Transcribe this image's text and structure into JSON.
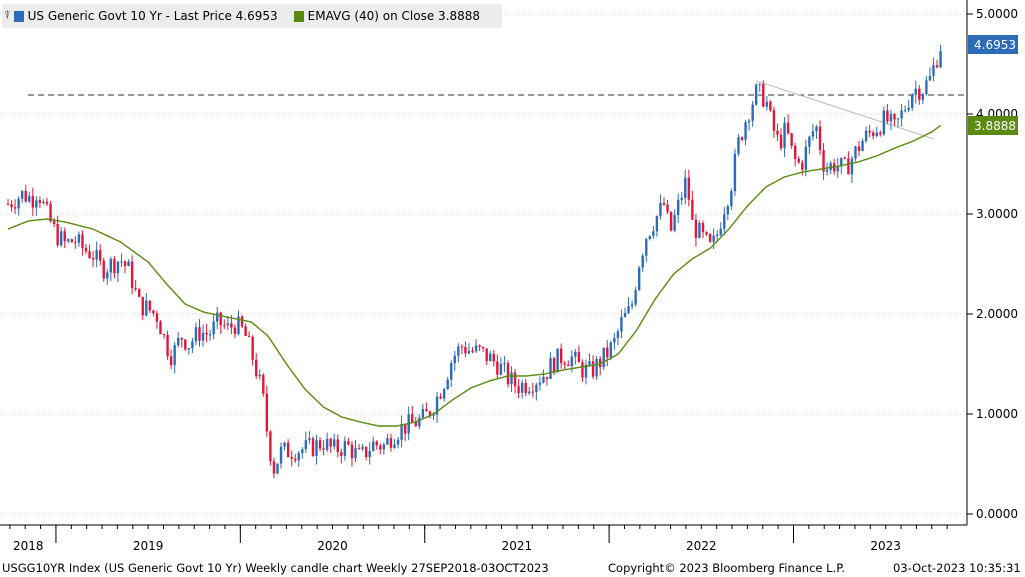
{
  "legend": {
    "filter_glyph": "⍒",
    "series1_label": "US Generic Govt 10 Yr - Last Price 4.6953",
    "series1_color": "#2c6bb5",
    "series2_label": "EMAVG (40)  on Close 3.8888",
    "series2_color": "#5a8a10"
  },
  "tags": {
    "last_price": "4.6953",
    "ema": "3.8888"
  },
  "footer": {
    "left": "USGG10YR Index (US Generic Govt 10 Yr) Weekly candle chart  Weekly 27SEP2018-03OCT2023",
    "middle": "Copyright© 2023 Bloomberg Finance L.P.",
    "right": "03-Oct-2023 10:35:31"
  },
  "chart_data": {
    "type": "candlestick",
    "ylim": [
      -0.1,
      5.1
    ],
    "y_ticks": [
      "5.0000",
      "4.0000",
      "3.0000",
      "2.0000",
      "1.0000",
      "0.0000"
    ],
    "y_tick_values": [
      5,
      4,
      3,
      2,
      1,
      0
    ],
    "x_labels": [
      "2018",
      "2019",
      "2020",
      "2021",
      "2022",
      "2023"
    ],
    "x_label_dates": [
      2018.85,
      2019.5,
      2020.5,
      2021.5,
      2022.5,
      2023.5
    ],
    "year_boundaries": [
      2019.0,
      2020.0,
      2021.0,
      2022.0,
      2023.0
    ],
    "x_range": [
      2018.74,
      2023.9
    ],
    "reference_line": 4.19,
    "trend_line": {
      "from": [
        2022.8,
        4.33
      ],
      "to": [
        2023.76,
        3.75
      ]
    },
    "close_anchors": [
      [
        2018.74,
        3.1
      ],
      [
        2018.82,
        3.2
      ],
      [
        2018.87,
        3.15
      ],
      [
        2018.9,
        3.24
      ],
      [
        2018.95,
        3.0
      ],
      [
        2019.0,
        2.8
      ],
      [
        2019.05,
        2.7
      ],
      [
        2019.1,
        2.74
      ],
      [
        2019.15,
        2.65
      ],
      [
        2019.2,
        2.6
      ],
      [
        2019.25,
        2.45
      ],
      [
        2019.3,
        2.5
      ],
      [
        2019.35,
        2.55
      ],
      [
        2019.4,
        2.42
      ],
      [
        2019.45,
        2.1
      ],
      [
        2019.5,
        2.05
      ],
      [
        2019.55,
        1.98
      ],
      [
        2019.6,
        1.68
      ],
      [
        2019.63,
        1.58
      ],
      [
        2019.68,
        1.78
      ],
      [
        2019.72,
        1.7
      ],
      [
        2019.78,
        1.82
      ],
      [
        2019.83,
        1.8
      ],
      [
        2019.88,
        1.92
      ],
      [
        2019.93,
        1.85
      ],
      [
        2019.97,
        1.9
      ],
      [
        2020.02,
        1.82
      ],
      [
        2020.07,
        1.55
      ],
      [
        2020.12,
        1.2
      ],
      [
        2020.15,
        0.75
      ],
      [
        2020.18,
        0.45
      ],
      [
        2020.22,
        0.62
      ],
      [
        2020.3,
        0.64
      ],
      [
        2020.38,
        0.66
      ],
      [
        2020.45,
        0.72
      ],
      [
        2020.5,
        0.64
      ],
      [
        2020.58,
        0.68
      ],
      [
        2020.65,
        0.56
      ],
      [
        2020.72,
        0.7
      ],
      [
        2020.78,
        0.68
      ],
      [
        2020.82,
        0.78
      ],
      [
        2020.88,
        0.87
      ],
      [
        2020.93,
        0.9
      ],
      [
        2021.0,
        0.96
      ],
      [
        2021.05,
        1.1
      ],
      [
        2021.1,
        1.3
      ],
      [
        2021.15,
        1.56
      ],
      [
        2021.2,
        1.68
      ],
      [
        2021.25,
        1.63
      ],
      [
        2021.3,
        1.62
      ],
      [
        2021.35,
        1.56
      ],
      [
        2021.4,
        1.49
      ],
      [
        2021.45,
        1.36
      ],
      [
        2021.5,
        1.28
      ],
      [
        2021.55,
        1.3
      ],
      [
        2021.6,
        1.34
      ],
      [
        2021.65,
        1.4
      ],
      [
        2021.7,
        1.52
      ],
      [
        2021.75,
        1.58
      ],
      [
        2021.8,
        1.56
      ],
      [
        2021.85,
        1.45
      ],
      [
        2021.9,
        1.42
      ],
      [
        2021.95,
        1.52
      ],
      [
        2022.0,
        1.63
      ],
      [
        2022.03,
        1.72
      ],
      [
        2022.07,
        1.93
      ],
      [
        2022.12,
        2.05
      ],
      [
        2022.16,
        2.5
      ],
      [
        2022.2,
        2.78
      ],
      [
        2022.25,
        2.95
      ],
      [
        2022.3,
        3.1
      ],
      [
        2022.33,
        2.8
      ],
      [
        2022.37,
        3.05
      ],
      [
        2022.42,
        3.35
      ],
      [
        2022.45,
        2.9
      ],
      [
        2022.5,
        2.78
      ],
      [
        2022.55,
        2.65
      ],
      [
        2022.58,
        2.75
      ],
      [
        2022.62,
        3.05
      ],
      [
        2022.66,
        3.28
      ],
      [
        2022.7,
        3.7
      ],
      [
        2022.75,
        4.0
      ],
      [
        2022.8,
        4.22
      ],
      [
        2022.85,
        4.15
      ],
      [
        2022.88,
        3.9
      ],
      [
        2022.92,
        3.7
      ],
      [
        2022.96,
        3.85
      ],
      [
        2023.0,
        3.55
      ],
      [
        2023.04,
        3.48
      ],
      [
        2023.08,
        3.7
      ],
      [
        2023.12,
        3.9
      ],
      [
        2023.17,
        3.45
      ],
      [
        2023.22,
        3.5
      ],
      [
        2023.28,
        3.45
      ],
      [
        2023.33,
        3.6
      ],
      [
        2023.38,
        3.75
      ],
      [
        2023.44,
        3.85
      ],
      [
        2023.5,
        3.95
      ],
      [
        2023.55,
        3.85
      ],
      [
        2023.6,
        4.05
      ],
      [
        2023.65,
        4.25
      ],
      [
        2023.7,
        4.25
      ],
      [
        2023.74,
        4.35
      ],
      [
        2023.78,
        4.58
      ],
      [
        2023.8,
        4.6953
      ]
    ],
    "ema_anchors": [
      [
        2018.74,
        2.85
      ],
      [
        2018.85,
        2.93
      ],
      [
        2018.95,
        2.95
      ],
      [
        2019.05,
        2.92
      ],
      [
        2019.2,
        2.85
      ],
      [
        2019.35,
        2.72
      ],
      [
        2019.5,
        2.52
      ],
      [
        2019.6,
        2.3
      ],
      [
        2019.7,
        2.1
      ],
      [
        2019.8,
        2.02
      ],
      [
        2019.9,
        1.98
      ],
      [
        2019.98,
        1.95
      ],
      [
        2020.06,
        1.92
      ],
      [
        2020.15,
        1.78
      ],
      [
        2020.25,
        1.5
      ],
      [
        2020.35,
        1.25
      ],
      [
        2020.45,
        1.07
      ],
      [
        2020.55,
        0.97
      ],
      [
        2020.65,
        0.92
      ],
      [
        2020.75,
        0.88
      ],
      [
        2020.85,
        0.88
      ],
      [
        2020.95,
        0.92
      ],
      [
        2021.05,
        1.0
      ],
      [
        2021.15,
        1.14
      ],
      [
        2021.25,
        1.26
      ],
      [
        2021.35,
        1.33
      ],
      [
        2021.45,
        1.38
      ],
      [
        2021.55,
        1.38
      ],
      [
        2021.65,
        1.4
      ],
      [
        2021.75,
        1.44
      ],
      [
        2021.85,
        1.47
      ],
      [
        2021.95,
        1.5
      ],
      [
        2022.05,
        1.6
      ],
      [
        2022.15,
        1.84
      ],
      [
        2022.25,
        2.15
      ],
      [
        2022.35,
        2.4
      ],
      [
        2022.45,
        2.55
      ],
      [
        2022.55,
        2.66
      ],
      [
        2022.65,
        2.85
      ],
      [
        2022.75,
        3.08
      ],
      [
        2022.85,
        3.27
      ],
      [
        2022.95,
        3.37
      ],
      [
        2023.05,
        3.42
      ],
      [
        2023.15,
        3.45
      ],
      [
        2023.25,
        3.48
      ],
      [
        2023.35,
        3.52
      ],
      [
        2023.45,
        3.58
      ],
      [
        2023.55,
        3.66
      ],
      [
        2023.65,
        3.73
      ],
      [
        2023.75,
        3.82
      ],
      [
        2023.8,
        3.8888
      ]
    ]
  }
}
